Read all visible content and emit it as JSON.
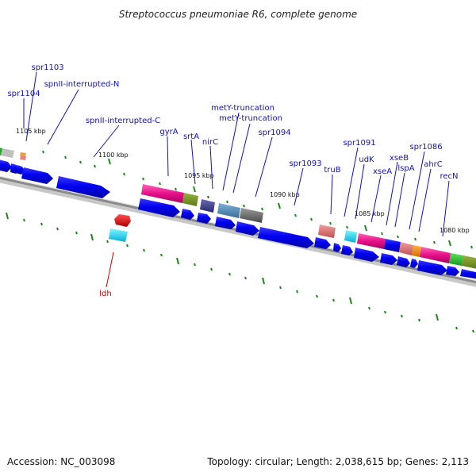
{
  "title": "Streptococcus pneumoniae R6, complete genome",
  "footer": {
    "accession": "Accession: NC_003098",
    "summary": "Topology: circular; Length: 2,038,615 bp; Genes: 2,113"
  },
  "ruler": [
    "1105 kbp",
    "1100 kbp",
    "1095 kbp",
    "1090 kbp",
    "1085 kbp",
    "1080 kbp"
  ],
  "genes": [
    "spr1103",
    "spr1104",
    "spnII-interrupted-N",
    "spnII-interrupted-C",
    "gyrA",
    "srtA",
    "nirC",
    "metY-truncation",
    "metY-truncation",
    "spr1094",
    "spr1093",
    "truB",
    "spr1091",
    "udK",
    "xseA",
    "xseB",
    "lspA",
    "spr1086",
    "ahrC",
    "recN",
    "ldh"
  ],
  "colors": {
    "label": "#1010c8",
    "ldh_label": "#cc0000",
    "cds": "#0000f0",
    "tick": "#1a8a1a",
    "backbone": "#8a8a8a"
  }
}
